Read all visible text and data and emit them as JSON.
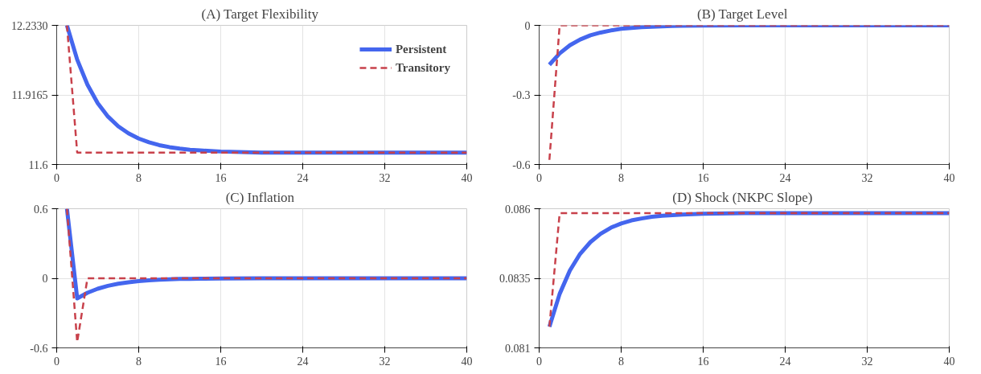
{
  "chart_data": [
    {
      "type": "line",
      "title": "(A)  Target Flexibility",
      "x": [
        1,
        2,
        3,
        4,
        5,
        6,
        7,
        8,
        9,
        10,
        11,
        12,
        13,
        14,
        16,
        20,
        24,
        28,
        32,
        36,
        40
      ],
      "xlim": [
        0,
        40
      ],
      "xticks": [
        0,
        8,
        16,
        24,
        32,
        40
      ],
      "ylim": [
        11.6,
        12.233
      ],
      "yticks": [
        11.6,
        {
          "value": 11.9165,
          "label": "11.9165"
        },
        {
          "value": 12.233,
          "label": "12.2330"
        }
      ],
      "grid": true,
      "legend": "top right",
      "series": [
        {
          "name": "Persistent",
          "color": "#4466ee",
          "line_style": "solid",
          "values": [
            12.233,
            12.077,
            11.963,
            11.879,
            11.818,
            11.774,
            11.742,
            11.718,
            11.701,
            11.688,
            11.679,
            11.672,
            11.667,
            11.664,
            11.659,
            11.654,
            11.654,
            11.654,
            11.654,
            11.654,
            11.654
          ]
        },
        {
          "name": "Transitory",
          "color": "#c8414b",
          "line_style": "dashed",
          "values": [
            12.233,
            11.654,
            11.654,
            11.654,
            11.654,
            11.654,
            11.654,
            11.654,
            11.654,
            11.654,
            11.654,
            11.654,
            11.654,
            11.654,
            11.654,
            11.654,
            11.654,
            11.654,
            11.654,
            11.654,
            11.654
          ]
        }
      ]
    },
    {
      "type": "line",
      "title": "(B)  Target Level",
      "x": [
        1,
        2,
        3,
        4,
        5,
        6,
        7,
        8,
        9,
        10,
        11,
        12,
        13,
        14,
        16,
        20,
        24,
        28,
        32,
        36,
        40
      ],
      "xlim": [
        0,
        40
      ],
      "xticks": [
        0,
        8,
        16,
        24,
        32,
        40
      ],
      "ylim": [
        -0.6,
        0
      ],
      "yticks": [
        -0.6,
        -0.3,
        0
      ],
      "grid": true,
      "series": [
        {
          "color": "#4466ee",
          "line_style": "solid",
          "values": [
            -0.17,
            -0.121,
            -0.086,
            -0.061,
            -0.043,
            -0.031,
            -0.022,
            -0.015,
            -0.011,
            -0.008,
            -0.006,
            -0.004,
            -0.003,
            -0.002,
            -0.001,
            0,
            0,
            0,
            0,
            0,
            0
          ]
        },
        {
          "color": "#c8414b",
          "line_style": "dashed",
          "values": [
            -0.58,
            0,
            0,
            0,
            0,
            0,
            0,
            0,
            0,
            0,
            0,
            0,
            0,
            0,
            0,
            0,
            0,
            0,
            0,
            0,
            0
          ]
        }
      ]
    },
    {
      "type": "line",
      "title": "(C)  Inflation",
      "x": [
        1,
        2,
        3,
        4,
        5,
        6,
        7,
        8,
        9,
        10,
        11,
        12,
        13,
        14,
        16,
        20,
        24,
        28,
        32,
        36,
        40
      ],
      "xlim": [
        0,
        40
      ],
      "xticks": [
        0,
        8,
        16,
        24,
        32,
        40
      ],
      "ylim": [
        -0.6,
        0.6
      ],
      "yticks": [
        -0.6,
        0,
        0.6
      ],
      "grid": true,
      "series": [
        {
          "color": "#4466ee",
          "line_style": "solid",
          "values": [
            0.6,
            -0.173,
            -0.125,
            -0.09,
            -0.065,
            -0.047,
            -0.034,
            -0.024,
            -0.017,
            -0.012,
            -0.009,
            -0.006,
            -0.005,
            -0.003,
            -0.002,
            0,
            0,
            0,
            0,
            0,
            0
          ]
        },
        {
          "color": "#c8414b",
          "line_style": "dashed",
          "values": [
            0.6,
            -0.55,
            0,
            0,
            0,
            0,
            0,
            0,
            0,
            0,
            0,
            0,
            0,
            0,
            0,
            0,
            0,
            0,
            0,
            0,
            0
          ]
        }
      ]
    },
    {
      "type": "line",
      "title": "(D)  Shock (NKPC Slope)",
      "x": [
        1,
        2,
        3,
        4,
        5,
        6,
        7,
        8,
        9,
        10,
        11,
        12,
        13,
        14,
        16,
        20,
        24,
        28,
        32,
        36,
        40
      ],
      "xlim": [
        0,
        40
      ],
      "xticks": [
        0,
        8,
        16,
        24,
        32,
        40
      ],
      "ylim": [
        0.081,
        0.086
      ],
      "yticks": [
        0.081,
        {
          "value": 0.0835,
          "label": "0.0835"
        },
        0.086
      ],
      "grid": true,
      "series": [
        {
          "color": "#4466ee",
          "line_style": "solid",
          "values": [
            0.08176,
            0.08294,
            0.08378,
            0.08438,
            0.0848,
            0.0851,
            0.08532,
            0.08547,
            0.08558,
            0.08565,
            0.08571,
            0.08575,
            0.08577,
            0.08579,
            0.08582,
            0.08584,
            0.08584,
            0.08584,
            0.08584,
            0.08584,
            0.08584
          ]
        },
        {
          "color": "#c8414b",
          "line_style": "dashed",
          "values": [
            0.08176,
            0.08584,
            0.08584,
            0.08584,
            0.08584,
            0.08584,
            0.08584,
            0.08584,
            0.08584,
            0.08584,
            0.08584,
            0.08584,
            0.08584,
            0.08584,
            0.08584,
            0.08584,
            0.08584,
            0.08584,
            0.08584,
            0.08584,
            0.08584
          ]
        }
      ]
    }
  ]
}
